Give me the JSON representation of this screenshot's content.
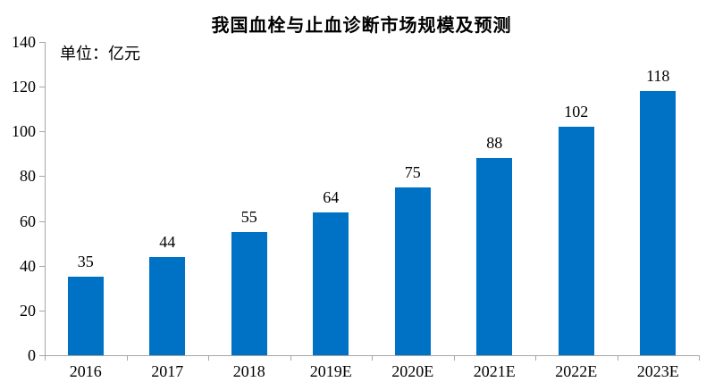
{
  "chart_data": {
    "type": "bar",
    "title": "我国血栓与止血诊断市场规模及预测",
    "unit_label": "单位：亿元",
    "categories": [
      "2016",
      "2017",
      "2018",
      "2019E",
      "2020E",
      "2021E",
      "2022E",
      "2023E"
    ],
    "values": [
      35,
      44,
      55,
      64,
      75,
      88,
      102,
      118
    ],
    "xlabel": "",
    "ylabel": "单位：亿元",
    "ylim": [
      0,
      140
    ],
    "yticks": [
      0,
      20,
      40,
      60,
      80,
      100,
      120,
      140
    ],
    "grid": false,
    "legend": false,
    "data_labels_shown": true,
    "bar_color": "#0072C6",
    "axis_color": "#A6A6A6",
    "text_color": "#000000"
  }
}
